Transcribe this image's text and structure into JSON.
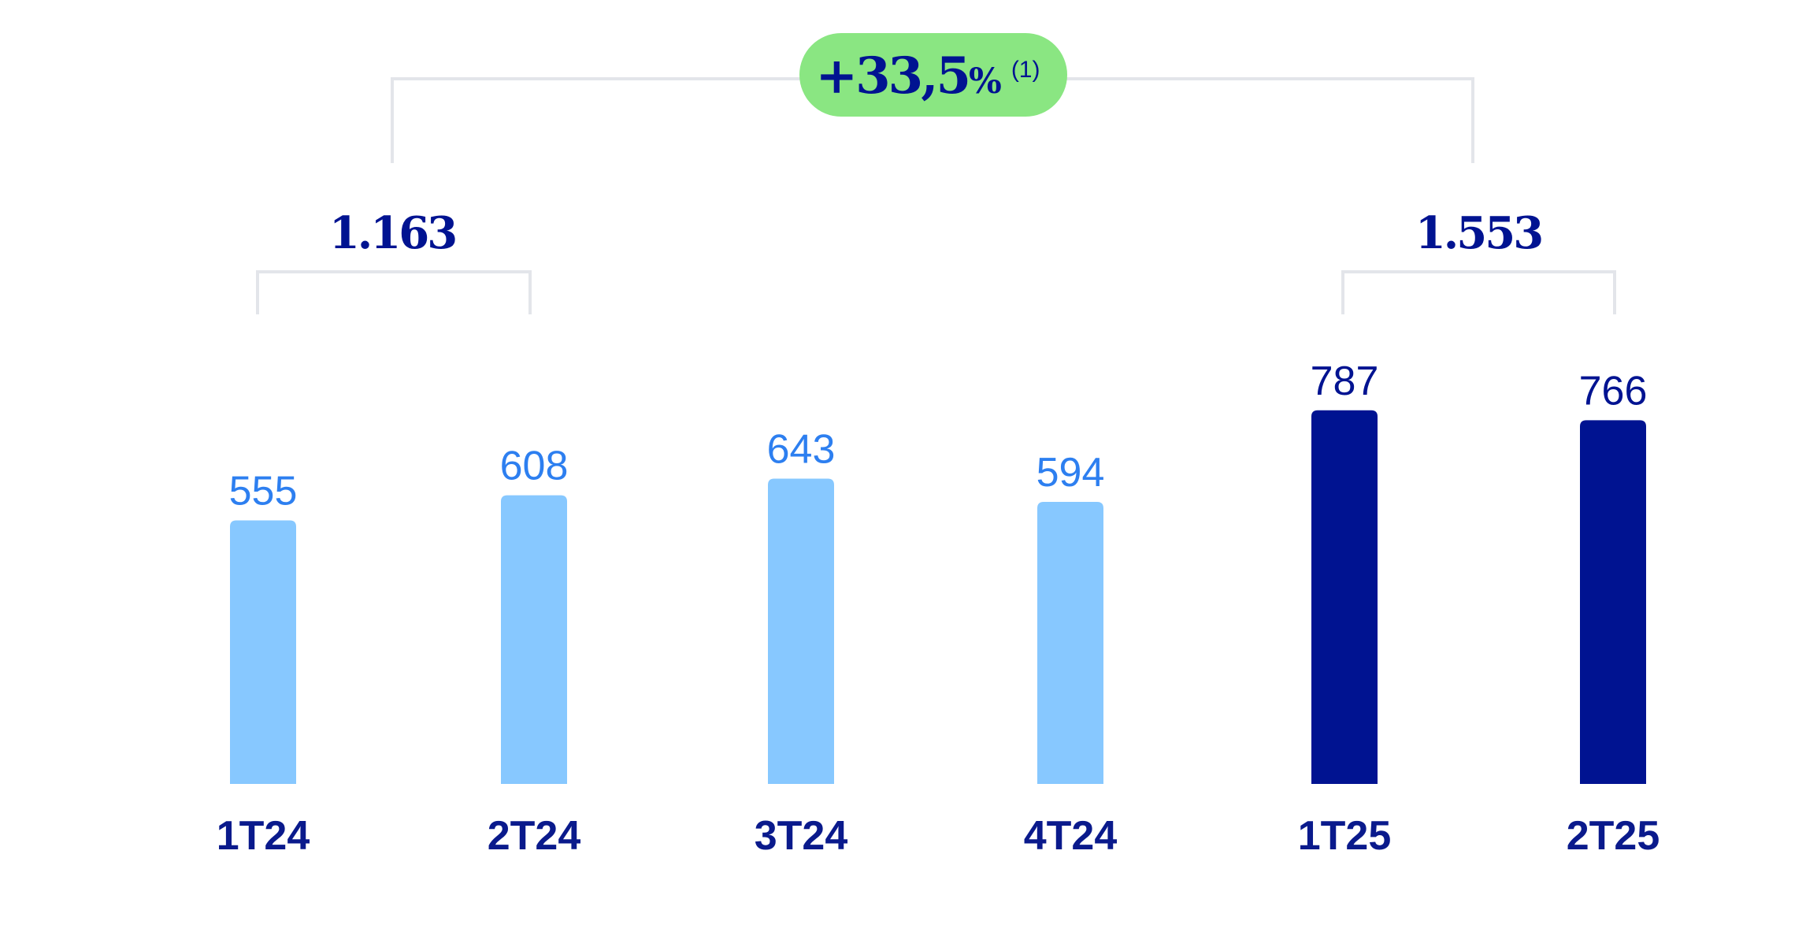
{
  "chart_data": {
    "type": "bar",
    "categories": [
      "1T24",
      "2T24",
      "3T24",
      "4T24",
      "1T25",
      "2T25"
    ],
    "values": [
      555,
      608,
      643,
      594,
      787,
      766
    ],
    "ylim": [
      0,
      800
    ],
    "grid": false,
    "group_totals": [
      {
        "label": "1.163",
        "covers": [
          "1T24",
          "2T24"
        ]
      },
      {
        "label": "1.553",
        "covers": [
          "1T25",
          "2T25"
        ]
      }
    ],
    "growth": {
      "value": "+33,5",
      "unit": "%",
      "note": "(1)"
    }
  },
  "colors": {
    "bar_2024": "#87c8ff",
    "bar_2025": "#001391",
    "label_2024": "#2d7ff0",
    "label_2025": "#001391",
    "category_text": "#0a1a8c",
    "badge_fill": "#8ae682",
    "bracket": "#e3e5ea"
  }
}
